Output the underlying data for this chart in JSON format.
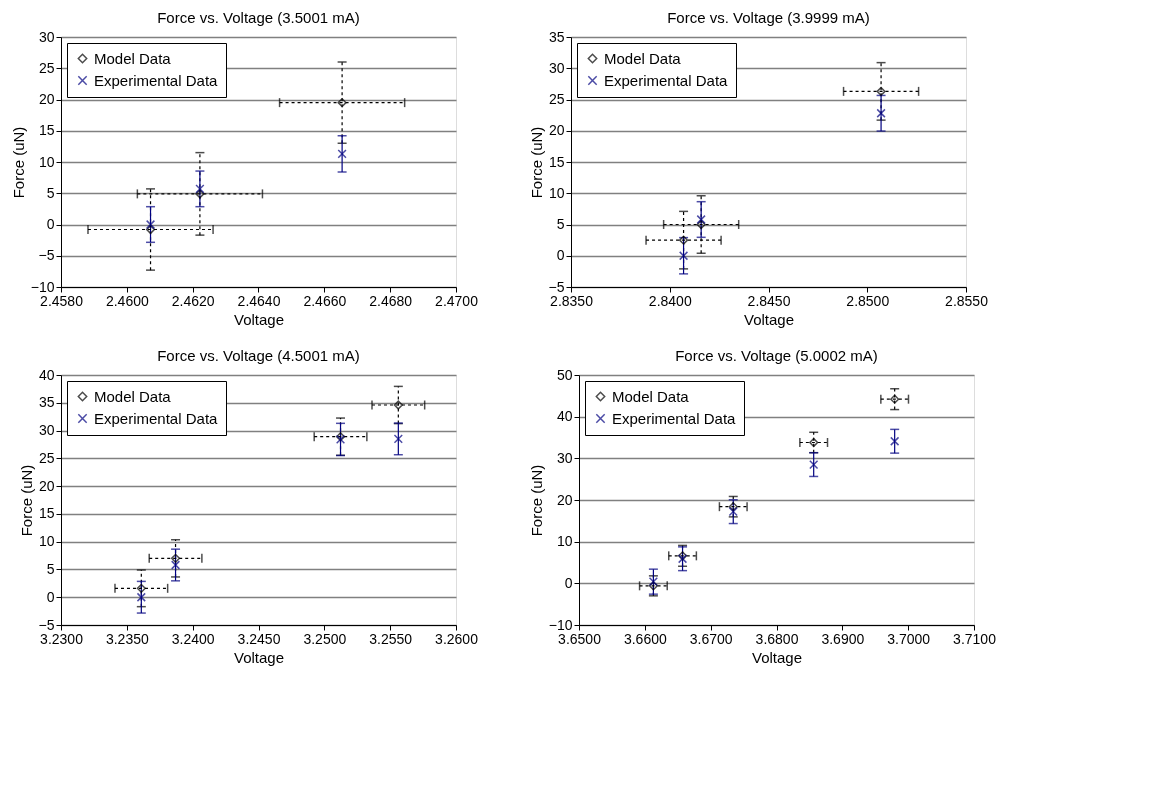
{
  "chart_data": [
    {
      "type": "scatter",
      "title": "Force vs. Voltage (3.5001 mA)",
      "xlabel": "Voltage",
      "ylabel": "Force (uN)",
      "grid": "y",
      "legend": "top left",
      "x": [
        2.46072,
        2.46222,
        2.46654
      ],
      "xlim": [
        2.458,
        2.47
      ],
      "xticks": [
        {
          "value": 2.458,
          "label": "2.4580"
        },
        {
          "value": 2.46,
          "label": "2.4600"
        },
        {
          "value": 2.462,
          "label": "2.4620"
        },
        {
          "value": 2.464,
          "label": "2.4640"
        },
        {
          "value": 2.466,
          "label": "2.4660"
        },
        {
          "value": 2.468,
          "label": "2.4680"
        },
        {
          "value": 2.47,
          "label": "2.4700"
        }
      ],
      "ylim": [
        -10,
        30
      ],
      "yticks": [
        -10,
        -5,
        0,
        5,
        10,
        15,
        20,
        25,
        30
      ],
      "series": [
        {
          "name": "Model Data",
          "color": "#000000",
          "marker": "diamond",
          "values": [
            -0.8,
            4.9,
            19.5
          ],
          "errors": [
            6.5,
            6.6,
            6.5
          ],
          "xerrors": [
            0.0019,
            0.0019,
            0.0019
          ]
        },
        {
          "name": "Experimental Data",
          "color": "#000080",
          "marker": "cross",
          "values": [
            0.0,
            5.7,
            11.3
          ],
          "errors": [
            2.85,
            2.85,
            2.9
          ]
        }
      ]
    },
    {
      "type": "scatter",
      "title": "Force vs. Voltage (3.9999 mA)",
      "xlabel": "Voltage",
      "ylabel": "Force (uN)",
      "grid": "y",
      "legend": "top left",
      "x": [
        2.8407,
        2.84159,
        2.8507
      ],
      "xlim": [
        2.835,
        2.855
      ],
      "xticks": [
        {
          "value": 2.835,
          "label": "2.8350"
        },
        {
          "value": 2.84,
          "label": "2.8400"
        },
        {
          "value": 2.845,
          "label": "2.8450"
        },
        {
          "value": 2.85,
          "label": "2.8500"
        },
        {
          "value": 2.855,
          "label": "2.8550"
        }
      ],
      "ylim": [
        -5,
        35
      ],
      "yticks": [
        -5,
        0,
        5,
        10,
        15,
        20,
        25,
        30,
        35
      ],
      "series": [
        {
          "name": "Model Data",
          "color": "#000000",
          "marker": "diamond",
          "values": [
            2.5,
            5.0,
            26.3
          ],
          "errors": [
            4.6,
            4.6,
            4.6
          ],
          "xerrors": [
            0.0019,
            0.0019,
            0.0019
          ]
        },
        {
          "name": "Experimental Data",
          "color": "#000080",
          "marker": "cross",
          "values": [
            0.0,
            5.8,
            22.8
          ],
          "errors": [
            2.9,
            2.85,
            2.85
          ]
        }
      ]
    },
    {
      "type": "scatter",
      "title": "Force vs. Voltage (4.5001 mA)",
      "xlabel": "Voltage",
      "ylabel": "Force (uN)",
      "grid": "y",
      "legend": "top left",
      "x": [
        3.2361,
        3.2387,
        3.25123,
        3.25562
      ],
      "xlim": [
        3.23,
        3.26
      ],
      "xticks": [
        {
          "value": 3.23,
          "label": "3.2300"
        },
        {
          "value": 3.235,
          "label": "3.2350"
        },
        {
          "value": 3.24,
          "label": "3.2400"
        },
        {
          "value": 3.245,
          "label": "3.2450"
        },
        {
          "value": 3.25,
          "label": "3.2500"
        },
        {
          "value": 3.255,
          "label": "3.2550"
        },
        {
          "value": 3.26,
          "label": "3.2600"
        }
      ],
      "ylim": [
        -5,
        40
      ],
      "yticks": [
        -5,
        0,
        5,
        10,
        15,
        20,
        25,
        30,
        35,
        40
      ],
      "series": [
        {
          "name": "Model Data",
          "color": "#000000",
          "marker": "diamond",
          "values": [
            1.6,
            7.0,
            28.9,
            34.6
          ],
          "errors": [
            3.3,
            3.35,
            3.35,
            3.35
          ],
          "xerrors": [
            0.002,
            0.002,
            0.002,
            0.002
          ]
        },
        {
          "name": "Experimental Data",
          "color": "#000080",
          "marker": "cross",
          "values": [
            0.0,
            5.8,
            28.4,
            28.5
          ],
          "errors": [
            2.85,
            2.85,
            2.9,
            2.85
          ]
        }
      ]
    },
    {
      "type": "scatter",
      "title": "Force vs. Voltage (5.0002 mA)",
      "xlabel": "Voltage",
      "ylabel": "Force (uN)",
      "grid": "y",
      "legend": "top left",
      "x": [
        3.6613,
        3.66573,
        3.67343,
        3.68565,
        3.69795
      ],
      "xlim": [
        3.65,
        3.71
      ],
      "xticks": [
        {
          "value": 3.65,
          "label": "3.6500"
        },
        {
          "value": 3.66,
          "label": "3.6600"
        },
        {
          "value": 3.67,
          "label": "3.6700"
        },
        {
          "value": 3.68,
          "label": "3.6800"
        },
        {
          "value": 3.69,
          "label": "3.6900"
        },
        {
          "value": 3.7,
          "label": "3.7000"
        },
        {
          "value": 3.71,
          "label": "3.7100"
        }
      ],
      "ylim": [
        -10,
        50
      ],
      "yticks": [
        -10,
        0,
        10,
        20,
        30,
        40,
        50
      ],
      "series": [
        {
          "name": "Model Data",
          "color": "#000000",
          "marker": "diamond",
          "values": [
            -0.6,
            6.6,
            18.4,
            33.8,
            44.2
          ],
          "errors": [
            2.4,
            2.5,
            2.45,
            2.45,
            2.5
          ],
          "xerrors": [
            0.0021,
            0.0021,
            0.0021,
            0.0021,
            0.0021
          ]
        },
        {
          "name": "Experimental Data",
          "color": "#000080",
          "marker": "cross",
          "values": [
            0.4,
            5.9,
            17.2,
            28.5,
            34.1
          ],
          "errors": [
            3.0,
            2.85,
            2.85,
            2.85,
            2.85
          ]
        }
      ]
    }
  ]
}
